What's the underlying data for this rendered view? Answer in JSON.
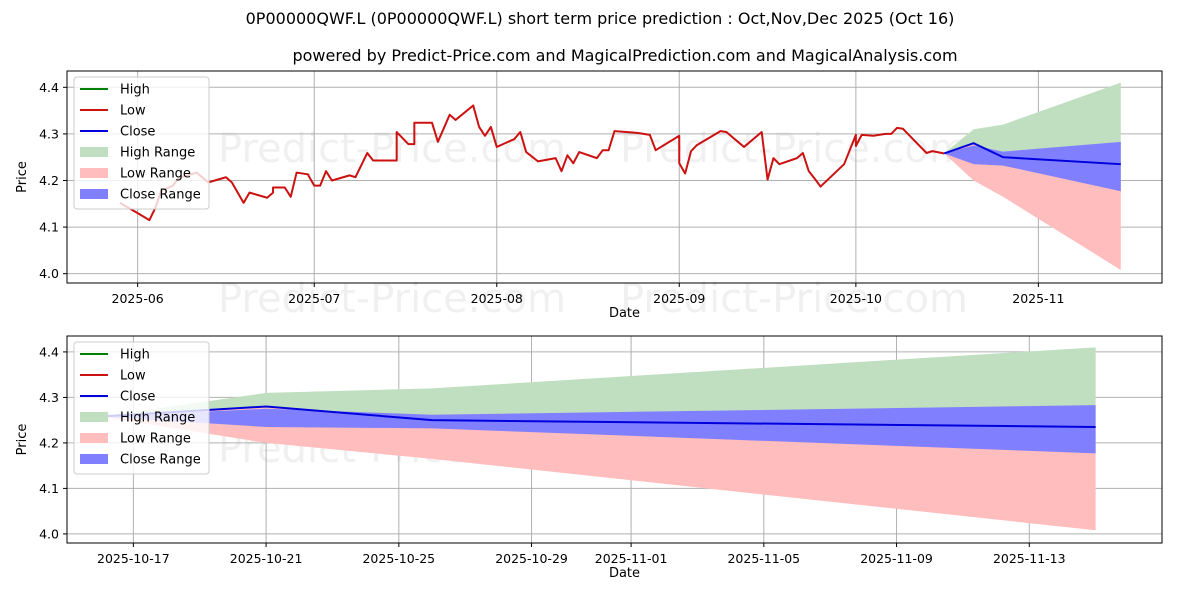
{
  "header": {
    "title": "0P00000QWF.L (0P00000QWF.L) short term price prediction : Oct,Nov,Dec 2025 (Oct 16)",
    "subtitle": "powered by Predict-Price.com and MagicalPrediction.com and MagicalAnalysis.com"
  },
  "watermark": "Predict-Price.com",
  "colors": {
    "high": "#008000",
    "low": "#cc1111",
    "close": "#0000dd",
    "high_range": "#c0dfc0",
    "low_range": "#ffbdbd",
    "close_range": "#8080ff"
  },
  "chart_data": [
    {
      "type": "line",
      "name": "history-and-forecast",
      "xlabel": "Date",
      "ylabel": "Price",
      "ylim": [
        3.98,
        4.435
      ],
      "xlim": [
        "2025-05-20",
        "2025-11-22"
      ],
      "grid": true,
      "legend_placement": "top-left",
      "yticks": [
        4.0,
        4.1,
        4.2,
        4.3,
        4.4
      ],
      "ytick_labels": [
        "4.0",
        "4.1",
        "4.2",
        "4.3",
        "4.4"
      ],
      "xticks": [
        "2025-06-01",
        "2025-07-01",
        "2025-08-01",
        "2025-09-01",
        "2025-10-01",
        "2025-11-01"
      ],
      "xtick_labels": [
        "2025-06",
        "2025-07",
        "2025-08",
        "2025-09",
        "2025-10",
        "2025-11"
      ],
      "legend": [
        "High",
        "Low",
        "Close",
        "High Range",
        "Low Range",
        "Close Range"
      ],
      "history": {
        "dates": [
          "2025-05-29",
          "2025-06-01",
          "2025-06-03",
          "2025-06-04",
          "2025-06-05",
          "2025-06-07",
          "2025-06-08",
          "2025-06-10",
          "2025-06-11",
          "2025-06-13",
          "2025-06-16",
          "2025-06-17",
          "2025-06-19",
          "2025-06-20",
          "2025-06-23",
          "2025-06-24",
          "2025-06-24",
          "2025-06-26",
          "2025-06-27",
          "2025-06-28",
          "2025-06-30",
          "2025-06-30",
          "2025-07-01",
          "2025-07-02",
          "2025-07-03",
          "2025-07-04",
          "2025-07-07",
          "2025-07-08",
          "2025-07-10",
          "2025-07-11",
          "2025-07-15",
          "2025-07-15",
          "2025-07-17",
          "2025-07-18",
          "2025-07-18",
          "2025-07-21",
          "2025-07-22",
          "2025-07-24",
          "2025-07-25",
          "2025-07-28",
          "2025-07-29",
          "2025-07-30",
          "2025-07-31",
          "2025-08-01",
          "2025-08-04",
          "2025-08-05",
          "2025-08-06",
          "2025-08-08",
          "2025-08-11",
          "2025-08-12",
          "2025-08-13",
          "2025-08-14",
          "2025-08-15",
          "2025-08-18",
          "2025-08-19",
          "2025-08-20",
          "2025-08-21",
          "2025-08-25",
          "2025-08-27",
          "2025-08-28",
          "2025-09-01",
          "2025-09-01",
          "2025-09-02",
          "2025-09-03",
          "2025-09-04",
          "2025-09-08",
          "2025-09-09",
          "2025-09-12",
          "2025-09-15",
          "2025-09-16",
          "2025-09-17",
          "2025-09-18",
          "2025-09-21",
          "2025-09-22",
          "2025-09-23",
          "2025-09-24",
          "2025-09-25",
          "2025-09-29",
          "2025-10-01",
          "2025-10-01",
          "2025-10-02",
          "2025-10-04",
          "2025-10-06",
          "2025-10-07",
          "2025-10-08",
          "2025-10-09",
          "2025-10-11",
          "2025-10-13",
          "2025-10-14",
          "2025-10-16"
        ],
        "low": [
          4.152,
          4.13,
          4.115,
          4.141,
          4.178,
          4.189,
          4.206,
          4.213,
          4.217,
          4.196,
          4.207,
          4.196,
          4.152,
          4.174,
          4.163,
          4.174,
          4.185,
          4.185,
          4.165,
          4.217,
          4.213,
          4.211,
          4.189,
          4.189,
          4.22,
          4.2,
          4.211,
          4.207,
          4.259,
          4.243,
          4.243,
          4.304,
          4.278,
          4.278,
          4.324,
          4.324,
          4.283,
          4.341,
          4.33,
          4.361,
          4.315,
          4.296,
          4.315,
          4.272,
          4.289,
          4.304,
          4.261,
          4.241,
          4.248,
          4.22,
          4.254,
          4.237,
          4.261,
          4.248,
          4.265,
          4.265,
          4.306,
          4.302,
          4.298,
          4.265,
          4.296,
          4.237,
          4.215,
          4.263,
          4.276,
          4.306,
          4.304,
          4.272,
          4.304,
          4.202,
          4.248,
          4.235,
          4.248,
          4.259,
          4.22,
          4.204,
          4.187,
          4.235,
          4.298,
          4.274,
          4.298,
          4.296,
          4.3,
          4.3,
          4.313,
          4.311,
          4.285,
          4.259,
          4.263,
          4.258
        ]
      },
      "forecast": {
        "dates": [
          "2025-10-16",
          "2025-10-21",
          "2025-10-26",
          "2025-11-15"
        ],
        "close": [
          4.258,
          4.28,
          4.25,
          4.235
        ],
        "high_range_top": [
          4.258,
          4.31,
          4.32,
          4.41
        ],
        "close_range_top": [
          4.258,
          4.275,
          4.262,
          4.283
        ],
        "close_range_bottom": [
          4.258,
          4.235,
          4.232,
          4.177
        ],
        "low_range_bottom": [
          4.258,
          4.2,
          4.165,
          4.008
        ]
      }
    },
    {
      "type": "line",
      "name": "forecast-zoom",
      "xlabel": "Date",
      "ylabel": "Price",
      "ylim": [
        3.98,
        4.435
      ],
      "xlim": [
        "2025-10-15",
        "2025-11-17"
      ],
      "grid": true,
      "legend_placement": "top-left",
      "yticks": [
        4.0,
        4.1,
        4.2,
        4.3,
        4.4
      ],
      "ytick_labels": [
        "4.0",
        "4.1",
        "4.2",
        "4.3",
        "4.4"
      ],
      "xticks": [
        "2025-10-17",
        "2025-10-21",
        "2025-10-25",
        "2025-10-29",
        "2025-11-01",
        "2025-11-05",
        "2025-11-09",
        "2025-11-13"
      ],
      "xtick_labels": [
        "2025-10-17",
        "2025-10-21",
        "2025-10-25",
        "2025-10-29",
        "2025-11-01",
        "2025-11-05",
        "2025-11-09",
        "2025-11-13"
      ],
      "legend": [
        "High",
        "Low",
        "Close",
        "High Range",
        "Low Range",
        "Close Range"
      ],
      "forecast": {
        "dates": [
          "2025-10-16",
          "2025-10-21",
          "2025-10-26",
          "2025-11-15"
        ],
        "close": [
          4.258,
          4.28,
          4.25,
          4.235
        ],
        "high_range_top": [
          4.258,
          4.31,
          4.32,
          4.41
        ],
        "close_range_top": [
          4.258,
          4.275,
          4.262,
          4.283
        ],
        "close_range_bottom": [
          4.258,
          4.235,
          4.232,
          4.177
        ],
        "low_range_bottom": [
          4.258,
          4.2,
          4.165,
          4.008
        ]
      }
    }
  ]
}
